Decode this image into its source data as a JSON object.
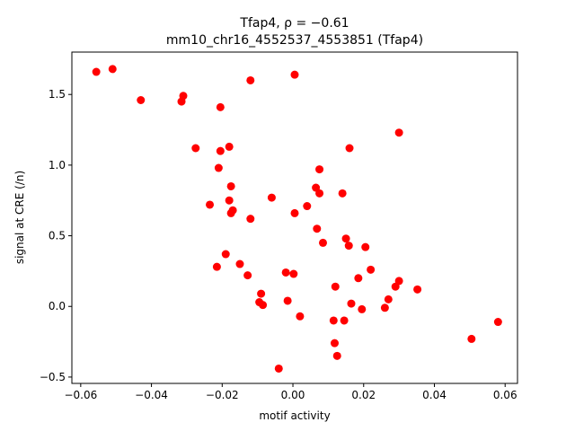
{
  "chart_data": {
    "type": "scatter",
    "title_line1": "Tfap4, ρ = −0.61",
    "title_line2": "mm10_chr16_4552537_4553851 (Tfap4)",
    "xlabel": "motif activity",
    "ylabel": "signal at CRE (/n)",
    "xlim": [
      -0.0625,
      0.0635
    ],
    "ylim": [
      -0.545,
      1.8
    ],
    "xticks": [
      -0.06,
      -0.04,
      -0.02,
      0.0,
      0.02,
      0.04,
      0.06
    ],
    "xtick_labels": [
      "−0.06",
      "−0.04",
      "−0.02",
      "0.00",
      "0.02",
      "0.04",
      "0.06"
    ],
    "yticks": [
      -0.5,
      0.0,
      0.5,
      1.0,
      1.5
    ],
    "ytick_labels": [
      "−0.5",
      "0.0",
      "0.5",
      "1.0",
      "1.5"
    ],
    "grid": false,
    "marker_color": "#ff0000",
    "points": [
      {
        "x": -0.0556,
        "y": 1.66
      },
      {
        "x": -0.051,
        "y": 1.68
      },
      {
        "x": -0.043,
        "y": 1.46
      },
      {
        "x": -0.0315,
        "y": 1.45
      },
      {
        "x": -0.031,
        "y": 1.49
      },
      {
        "x": -0.0205,
        "y": 1.41
      },
      {
        "x": -0.012,
        "y": 1.6
      },
      {
        "x": 0.0005,
        "y": 1.64
      },
      {
        "x": -0.0275,
        "y": 1.12
      },
      {
        "x": -0.0205,
        "y": 1.1
      },
      {
        "x": -0.018,
        "y": 1.13
      },
      {
        "x": -0.021,
        "y": 0.98
      },
      {
        "x": -0.0175,
        "y": 0.85
      },
      {
        "x": -0.018,
        "y": 0.75
      },
      {
        "x": -0.0235,
        "y": 0.72
      },
      {
        "x": -0.0175,
        "y": 0.66
      },
      {
        "x": -0.017,
        "y": 0.68
      },
      {
        "x": -0.012,
        "y": 0.62
      },
      {
        "x": -0.006,
        "y": 0.77
      },
      {
        "x": 0.0005,
        "y": 0.66
      },
      {
        "x": 0.004,
        "y": 0.71
      },
      {
        "x": 0.0065,
        "y": 0.84
      },
      {
        "x": 0.0075,
        "y": 0.8
      },
      {
        "x": 0.0075,
        "y": 0.97
      },
      {
        "x": 0.014,
        "y": 0.8
      },
      {
        "x": 0.016,
        "y": 1.12
      },
      {
        "x": 0.03,
        "y": 1.23
      },
      {
        "x": 0.0068,
        "y": 0.55
      },
      {
        "x": 0.0085,
        "y": 0.45
      },
      {
        "x": 0.015,
        "y": 0.48
      },
      {
        "x": 0.0158,
        "y": 0.43
      },
      {
        "x": 0.0205,
        "y": 0.42
      },
      {
        "x": -0.019,
        "y": 0.37
      },
      {
        "x": -0.0215,
        "y": 0.28
      },
      {
        "x": -0.015,
        "y": 0.3
      },
      {
        "x": -0.0128,
        "y": 0.22
      },
      {
        "x": -0.002,
        "y": 0.24
      },
      {
        "x": 0.0002,
        "y": 0.23
      },
      {
        "x": 0.022,
        "y": 0.26
      },
      {
        "x": 0.0185,
        "y": 0.2
      },
      {
        "x": 0.03,
        "y": 0.18
      },
      {
        "x": 0.029,
        "y": 0.14
      },
      {
        "x": 0.0352,
        "y": 0.12
      },
      {
        "x": 0.012,
        "y": 0.14
      },
      {
        "x": -0.009,
        "y": 0.09
      },
      {
        "x": -0.0095,
        "y": 0.03
      },
      {
        "x": -0.0085,
        "y": 0.01
      },
      {
        "x": -0.0015,
        "y": 0.04
      },
      {
        "x": 0.0165,
        "y": 0.02
      },
      {
        "x": 0.027,
        "y": 0.05
      },
      {
        "x": 0.0195,
        "y": -0.02
      },
      {
        "x": 0.026,
        "y": -0.01
      },
      {
        "x": 0.002,
        "y": -0.07
      },
      {
        "x": 0.0115,
        "y": -0.1
      },
      {
        "x": 0.0145,
        "y": -0.1
      },
      {
        "x": 0.0118,
        "y": -0.26
      },
      {
        "x": 0.0125,
        "y": -0.35
      },
      {
        "x": -0.004,
        "y": -0.44
      },
      {
        "x": 0.0505,
        "y": -0.23
      },
      {
        "x": 0.058,
        "y": -0.11
      }
    ]
  }
}
